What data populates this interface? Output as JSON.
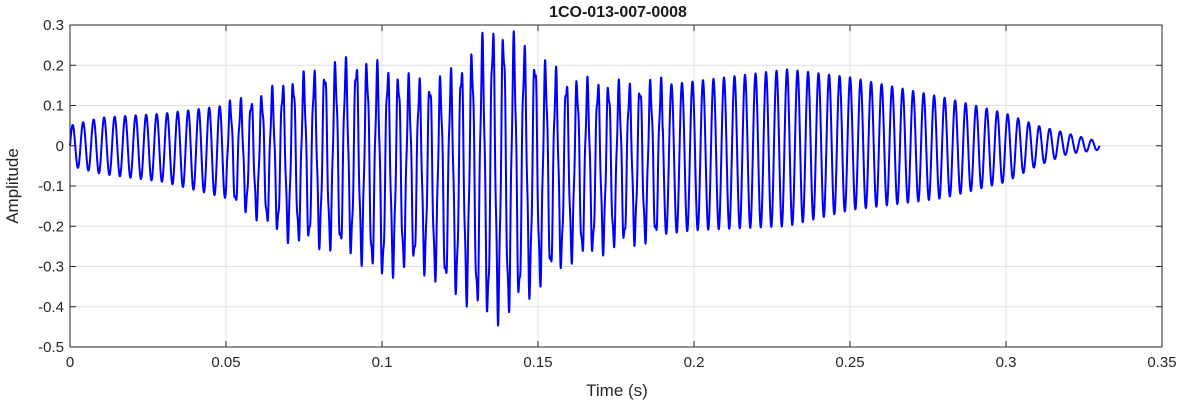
{
  "chart_data": {
    "type": "line",
    "title": "1CO-013-007-0008",
    "xlabel": "Time (s)",
    "ylabel": "Amplitude",
    "xlim": [
      0,
      0.35
    ],
    "ylim": [
      -0.5,
      0.3
    ],
    "xticks": [
      0,
      0.05,
      0.1,
      0.15,
      0.2,
      0.25,
      0.3,
      0.35
    ],
    "xtick_labels": [
      "0",
      "0.05",
      "0.1",
      "0.15",
      "0.2",
      "0.25",
      "0.3",
      "0.35"
    ],
    "yticks": [
      -0.5,
      -0.4,
      -0.3,
      -0.2,
      -0.1,
      0,
      0.1,
      0.2,
      0.3
    ],
    "ytick_labels": [
      "-0.5",
      "-0.4",
      "-0.3",
      "-0.2",
      "-0.1",
      "0",
      "0.1",
      "0.2",
      "0.3"
    ],
    "grid": true,
    "line_color": "#0000ff",
    "signal": {
      "duration": 0.33,
      "num_cycles": 98,
      "peak_envelope": {
        "t": [
          0,
          0.01,
          0.03,
          0.05,
          0.06,
          0.07,
          0.09,
          0.1,
          0.11,
          0.12,
          0.13,
          0.135,
          0.14,
          0.15,
          0.16,
          0.18,
          0.2,
          0.23,
          0.25,
          0.28,
          0.3,
          0.31,
          0.32,
          0.33
        ],
        "v": [
          0.05,
          0.07,
          0.08,
          0.1,
          0.11,
          0.15,
          0.2,
          0.18,
          0.15,
          0.15,
          0.22,
          0.27,
          0.26,
          0.2,
          0.15,
          0.14,
          0.16,
          0.19,
          0.17,
          0.12,
          0.08,
          0.05,
          0.03,
          0.01
        ]
      },
      "trough_envelope": {
        "t": [
          0,
          0.01,
          0.03,
          0.05,
          0.06,
          0.07,
          0.09,
          0.1,
          0.11,
          0.12,
          0.13,
          0.135,
          0.14,
          0.15,
          0.16,
          0.18,
          0.2,
          0.23,
          0.25,
          0.28,
          0.3,
          0.31,
          0.32,
          0.33
        ],
        "v": [
          -0.05,
          -0.07,
          -0.09,
          -0.13,
          -0.17,
          -0.22,
          -0.25,
          -0.31,
          -0.28,
          -0.33,
          -0.38,
          -0.41,
          -0.4,
          -0.33,
          -0.27,
          -0.23,
          -0.21,
          -0.2,
          -0.16,
          -0.13,
          -0.09,
          -0.05,
          -0.02,
          -0.01
        ]
      }
    }
  }
}
